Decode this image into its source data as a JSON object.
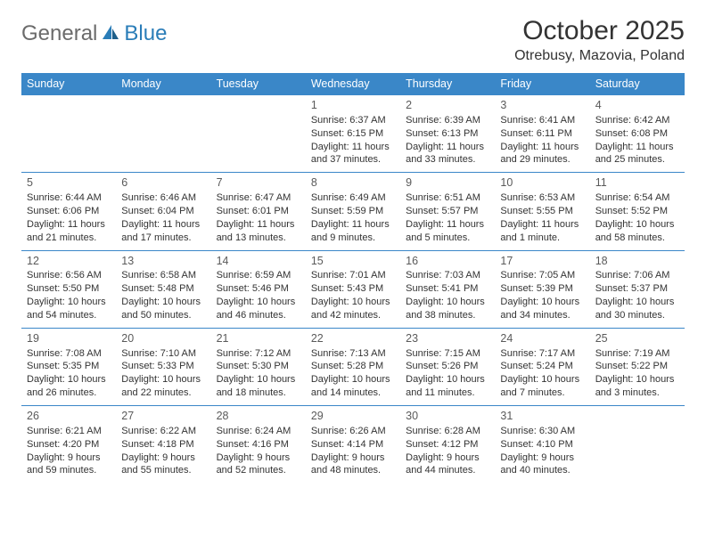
{
  "logo": {
    "gray": "General",
    "blue": "Blue"
  },
  "title": "October 2025",
  "location": "Otrebusy, Mazovia, Poland",
  "colors": {
    "header_bg": "#3a87c8",
    "header_text": "#ffffff",
    "border": "#3a87c8",
    "logo_gray": "#6b6b6b",
    "logo_blue": "#2a7db8",
    "text": "#333333"
  },
  "grid": {
    "columns": 7,
    "rows": 5,
    "day_headers": [
      "Sunday",
      "Monday",
      "Tuesday",
      "Wednesday",
      "Thursday",
      "Friday",
      "Saturday"
    ]
  },
  "days": [
    {
      "n": "",
      "sr": "",
      "ss": "",
      "dl": ""
    },
    {
      "n": "",
      "sr": "",
      "ss": "",
      "dl": ""
    },
    {
      "n": "",
      "sr": "",
      "ss": "",
      "dl": ""
    },
    {
      "n": "1",
      "sr": "6:37 AM",
      "ss": "6:15 PM",
      "dl": "11 hours and 37 minutes."
    },
    {
      "n": "2",
      "sr": "6:39 AM",
      "ss": "6:13 PM",
      "dl": "11 hours and 33 minutes."
    },
    {
      "n": "3",
      "sr": "6:41 AM",
      "ss": "6:11 PM",
      "dl": "11 hours and 29 minutes."
    },
    {
      "n": "4",
      "sr": "6:42 AM",
      "ss": "6:08 PM",
      "dl": "11 hours and 25 minutes."
    },
    {
      "n": "5",
      "sr": "6:44 AM",
      "ss": "6:06 PM",
      "dl": "11 hours and 21 minutes."
    },
    {
      "n": "6",
      "sr": "6:46 AM",
      "ss": "6:04 PM",
      "dl": "11 hours and 17 minutes."
    },
    {
      "n": "7",
      "sr": "6:47 AM",
      "ss": "6:01 PM",
      "dl": "11 hours and 13 minutes."
    },
    {
      "n": "8",
      "sr": "6:49 AM",
      "ss": "5:59 PM",
      "dl": "11 hours and 9 minutes."
    },
    {
      "n": "9",
      "sr": "6:51 AM",
      "ss": "5:57 PM",
      "dl": "11 hours and 5 minutes."
    },
    {
      "n": "10",
      "sr": "6:53 AM",
      "ss": "5:55 PM",
      "dl": "11 hours and 1 minute."
    },
    {
      "n": "11",
      "sr": "6:54 AM",
      "ss": "5:52 PM",
      "dl": "10 hours and 58 minutes."
    },
    {
      "n": "12",
      "sr": "6:56 AM",
      "ss": "5:50 PM",
      "dl": "10 hours and 54 minutes."
    },
    {
      "n": "13",
      "sr": "6:58 AM",
      "ss": "5:48 PM",
      "dl": "10 hours and 50 minutes."
    },
    {
      "n": "14",
      "sr": "6:59 AM",
      "ss": "5:46 PM",
      "dl": "10 hours and 46 minutes."
    },
    {
      "n": "15",
      "sr": "7:01 AM",
      "ss": "5:43 PM",
      "dl": "10 hours and 42 minutes."
    },
    {
      "n": "16",
      "sr": "7:03 AM",
      "ss": "5:41 PM",
      "dl": "10 hours and 38 minutes."
    },
    {
      "n": "17",
      "sr": "7:05 AM",
      "ss": "5:39 PM",
      "dl": "10 hours and 34 minutes."
    },
    {
      "n": "18",
      "sr": "7:06 AM",
      "ss": "5:37 PM",
      "dl": "10 hours and 30 minutes."
    },
    {
      "n": "19",
      "sr": "7:08 AM",
      "ss": "5:35 PM",
      "dl": "10 hours and 26 minutes."
    },
    {
      "n": "20",
      "sr": "7:10 AM",
      "ss": "5:33 PM",
      "dl": "10 hours and 22 minutes."
    },
    {
      "n": "21",
      "sr": "7:12 AM",
      "ss": "5:30 PM",
      "dl": "10 hours and 18 minutes."
    },
    {
      "n": "22",
      "sr": "7:13 AM",
      "ss": "5:28 PM",
      "dl": "10 hours and 14 minutes."
    },
    {
      "n": "23",
      "sr": "7:15 AM",
      "ss": "5:26 PM",
      "dl": "10 hours and 11 minutes."
    },
    {
      "n": "24",
      "sr": "7:17 AM",
      "ss": "5:24 PM",
      "dl": "10 hours and 7 minutes."
    },
    {
      "n": "25",
      "sr": "7:19 AM",
      "ss": "5:22 PM",
      "dl": "10 hours and 3 minutes."
    },
    {
      "n": "26",
      "sr": "6:21 AM",
      "ss": "4:20 PM",
      "dl": "9 hours and 59 minutes."
    },
    {
      "n": "27",
      "sr": "6:22 AM",
      "ss": "4:18 PM",
      "dl": "9 hours and 55 minutes."
    },
    {
      "n": "28",
      "sr": "6:24 AM",
      "ss": "4:16 PM",
      "dl": "9 hours and 52 minutes."
    },
    {
      "n": "29",
      "sr": "6:26 AM",
      "ss": "4:14 PM",
      "dl": "9 hours and 48 minutes."
    },
    {
      "n": "30",
      "sr": "6:28 AM",
      "ss": "4:12 PM",
      "dl": "9 hours and 44 minutes."
    },
    {
      "n": "31",
      "sr": "6:30 AM",
      "ss": "4:10 PM",
      "dl": "9 hours and 40 minutes."
    },
    {
      "n": "",
      "sr": "",
      "ss": "",
      "dl": ""
    }
  ],
  "labels": {
    "sunrise": "Sunrise:",
    "sunset": "Sunset:",
    "daylight": "Daylight:"
  }
}
